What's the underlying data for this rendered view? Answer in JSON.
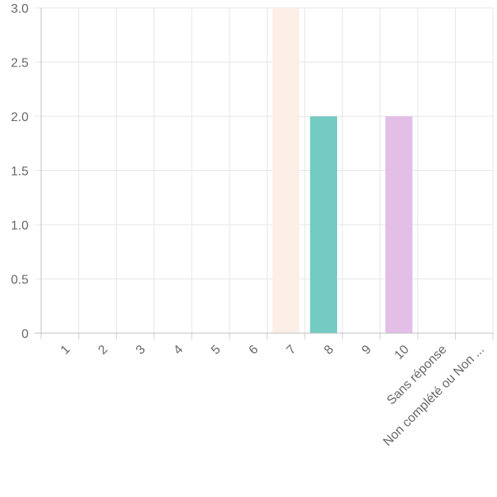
{
  "chart_data": {
    "type": "bar",
    "categories": [
      "1",
      "2",
      "3",
      "4",
      "5",
      "6",
      "7",
      "8",
      "9",
      "10",
      "Sans réponse",
      "Non complété ou Non ..."
    ],
    "values": [
      0,
      0,
      0,
      0,
      0,
      0,
      3,
      2,
      0,
      2,
      0,
      0
    ],
    "bar_colors": [
      "#fdf1ea",
      "#fdf1ea",
      "#fdf1ea",
      "#fdf1ea",
      "#fdf1ea",
      "#fdf1ea",
      "#fcefe7",
      "#74cbc3",
      "#fdf1ea",
      "#e3bfe8",
      "#fdf1ea",
      "#fdf1ea"
    ],
    "y_ticks": [
      "0",
      "0.5",
      "1.0",
      "1.5",
      "2.0",
      "2.5",
      "3.0"
    ],
    "ylim": [
      0,
      3
    ],
    "grid": true,
    "legend": "none"
  }
}
